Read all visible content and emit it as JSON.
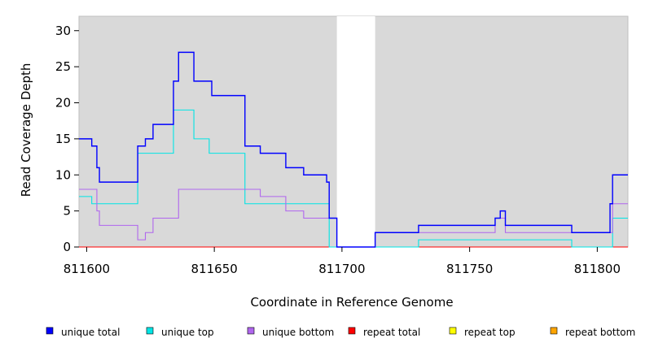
{
  "chart_data": {
    "type": "line",
    "step": true,
    "title": "",
    "xlabel": "Coordinate in Reference Genome",
    "ylabel": "Read Coverage Depth",
    "xlim": [
      811597,
      811812
    ],
    "ylim": [
      0,
      32
    ],
    "xticks": [
      811600,
      811650,
      811700,
      811750,
      811800
    ],
    "yticks": [
      0,
      5,
      10,
      15,
      20,
      25,
      30
    ],
    "background_color": "#d9d9d9",
    "gap_region": [
      811698,
      811713
    ],
    "grid": false,
    "legend_position": "bottom",
    "series": [
      {
        "name": "unique total",
        "color": "#0000ff",
        "x": [
          811597,
          811602,
          811604,
          811605,
          811620,
          811623,
          811626,
          811634,
          811636,
          811642,
          811649,
          811662,
          811668,
          811678,
          811685,
          811694,
          811695,
          811698,
          811713,
          811730,
          811760,
          811762,
          811764,
          811790,
          811805,
          811806,
          811812
        ],
        "y": [
          15,
          14,
          11,
          9,
          14,
          15,
          17,
          23,
          27,
          23,
          21,
          14,
          13,
          11,
          10,
          9,
          4,
          0,
          2,
          3,
          4,
          5,
          3,
          2,
          6,
          10,
          10
        ]
      },
      {
        "name": "unique top",
        "color": "#00e5e5",
        "x": [
          811597,
          811602,
          811604,
          811620,
          811634,
          811642,
          811648,
          811662,
          811695,
          811698,
          811713,
          811730,
          811760,
          811762,
          811790,
          811806,
          811812
        ],
        "y": [
          7,
          6,
          6,
          13,
          19,
          15,
          13,
          6,
          0,
          0,
          0,
          1,
          1,
          1,
          0,
          4,
          4
        ]
      },
      {
        "name": "unique bottom",
        "color": "#b066ee",
        "x": [
          811597,
          811604,
          811605,
          811620,
          811623,
          811626,
          811636,
          811668,
          811678,
          811685,
          811695,
          811698,
          811713,
          811730,
          811760,
          811764,
          811790,
          811806,
          811812
        ],
        "y": [
          8,
          5,
          3,
          1,
          2,
          4,
          8,
          7,
          5,
          4,
          4,
          0,
          2,
          2,
          4,
          2,
          2,
          6,
          6
        ]
      },
      {
        "name": "repeat total",
        "color": "#ff0000",
        "x": [
          811597,
          811812
        ],
        "y": [
          0,
          0
        ]
      },
      {
        "name": "repeat top",
        "color": "#ffff00",
        "x": [
          811597,
          811812
        ],
        "y": [
          0,
          0
        ]
      },
      {
        "name": "repeat bottom",
        "color": "#ffa500",
        "x": [
          811597,
          811812
        ],
        "y": [
          0,
          0
        ]
      }
    ]
  }
}
